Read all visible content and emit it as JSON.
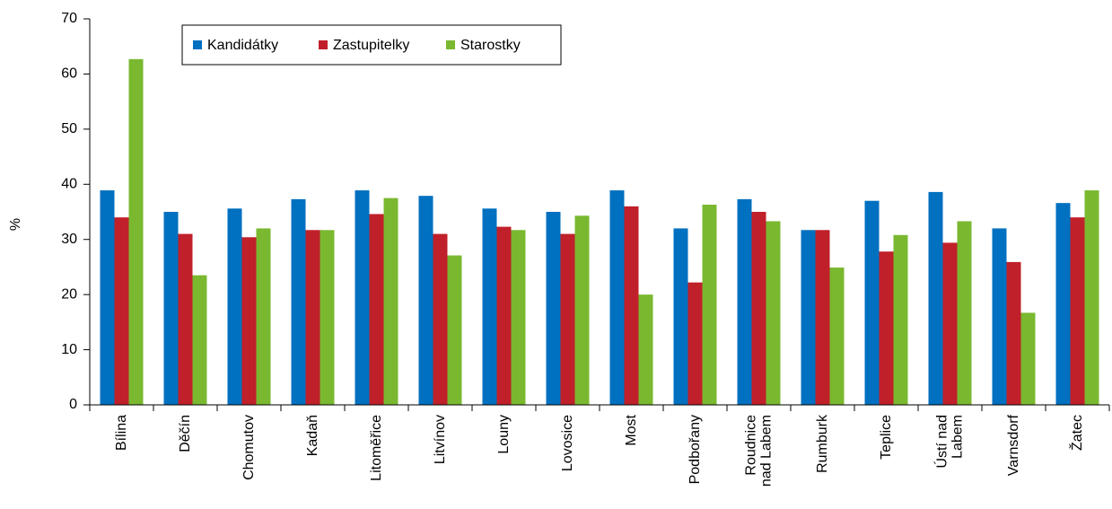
{
  "chart_data": {
    "type": "bar",
    "y_label": "%",
    "categories": [
      "Bílina",
      "Děčín",
      "Chomutov",
      "Kadaň",
      "Litoměřice",
      "Litvínov",
      "Louny",
      "Lovosice",
      "Most",
      "Podbořany",
      "Roudnice nad Labem",
      "Rumburk",
      "Teplice",
      "Ústí nad Labem",
      "Varnsdorf",
      "Žatec"
    ],
    "series": [
      {
        "name": "Kandidátky",
        "color": "#0070c0",
        "values": [
          38.9,
          35,
          35.6,
          37.3,
          38.9,
          37.9,
          35.6,
          35,
          38.9,
          32,
          37.3,
          31.7,
          37,
          38.6,
          32,
          36.6
        ]
      },
      {
        "name": "Zastupitelky",
        "color": "#c0202a",
        "values": [
          34,
          31,
          30.4,
          31.7,
          34.6,
          31,
          32.3,
          31,
          36,
          22.2,
          35,
          31.7,
          27.8,
          29.4,
          25.9,
          34
        ]
      },
      {
        "name": "Starostky",
        "color": "#7ab830",
        "values": [
          62.7,
          23.5,
          32,
          31.7,
          37.5,
          27.1,
          31.7,
          34.3,
          20,
          36.3,
          33.3,
          24.9,
          30.8,
          33.3,
          16.7,
          38.9
        ]
      }
    ],
    "ylim": [
      0,
      70
    ],
    "yticks": [
      0,
      10,
      20,
      30,
      40,
      50,
      60,
      70
    ],
    "legend": "top-left"
  }
}
